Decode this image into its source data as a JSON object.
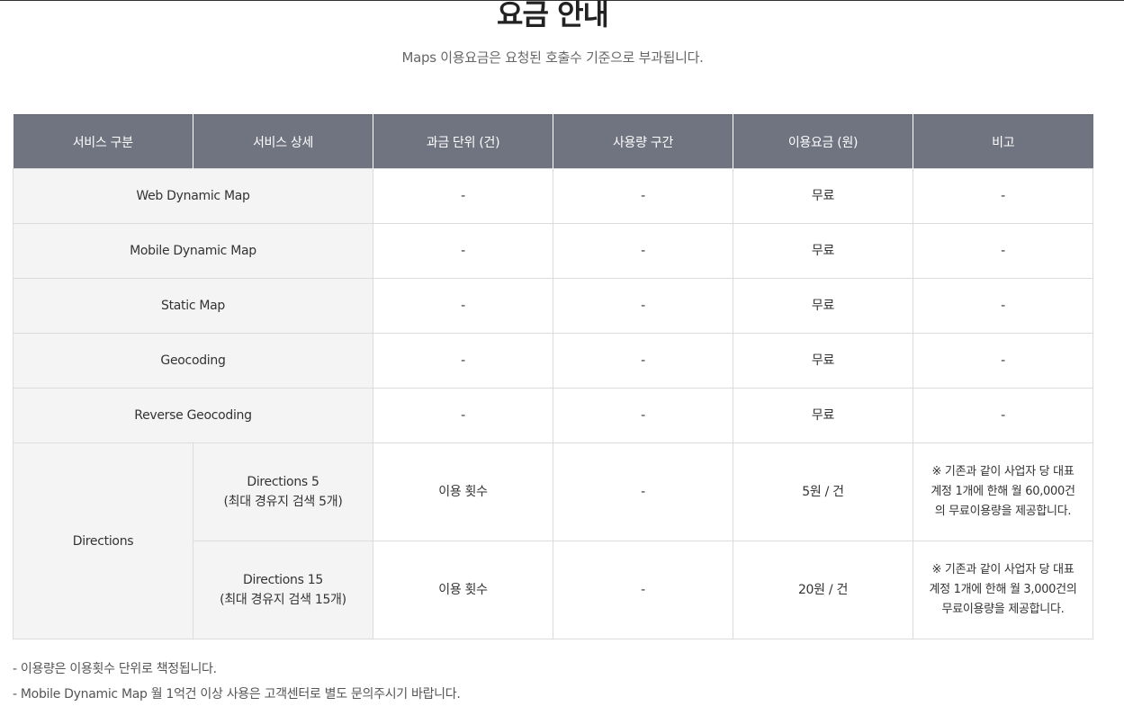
{
  "header": {
    "title": "요금 안내",
    "subtitle": "Maps 이용요금은 요청된 호출수 기준으로 부과됩니다."
  },
  "table": {
    "columns": [
      "서비스 구분",
      "서비스 상세",
      "과금 단위 (건)",
      "사용량 구간",
      "이용요금 (원)",
      "비고"
    ],
    "rows": [
      {
        "service": "Web Dynamic Map",
        "unit": "-",
        "range": "-",
        "price": "무료",
        "note": "-"
      },
      {
        "service": "Mobile Dynamic Map",
        "unit": "-",
        "range": "-",
        "price": "무료",
        "note": "-"
      },
      {
        "service": "Static Map",
        "unit": "-",
        "range": "-",
        "price": "무료",
        "note": "-"
      },
      {
        "service": "Geocoding",
        "unit": "-",
        "range": "-",
        "price": "무료",
        "note": "-"
      },
      {
        "service": "Reverse Geocoding",
        "unit": "-",
        "range": "-",
        "price": "무료",
        "note": "-"
      }
    ],
    "directions": {
      "service": "Directions",
      "items": [
        {
          "detail_name": "Directions 5",
          "detail_sub": "(최대 경유지 검색 5개)",
          "unit": "이용 횟수",
          "range": "-",
          "price": "5원 / 건",
          "note_lines": [
            "※ 기존과 같이 사업자 당 대표",
            "계정 1개에 한해 월 60,000건",
            "의 무료이용량을 제공합니다."
          ]
        },
        {
          "detail_name": "Directions 15",
          "detail_sub": "(최대 경유지 검색 15개)",
          "unit": "이용 횟수",
          "range": "-",
          "price": "20원 / 건",
          "note_lines": [
            "※ 기존과 같이 사업자 당 대표",
            "계정 1개에 한해 월 3,000건의",
            "무료이용량을 제공합니다."
          ]
        }
      ]
    }
  },
  "footnotes": [
    "- 이용량은 이용횟수 단위로 책정됩니다.",
    "- Mobile Dynamic Map 월 1억건 이상 사용은 고객센터로 별도 문의주시기 바랍니다."
  ]
}
